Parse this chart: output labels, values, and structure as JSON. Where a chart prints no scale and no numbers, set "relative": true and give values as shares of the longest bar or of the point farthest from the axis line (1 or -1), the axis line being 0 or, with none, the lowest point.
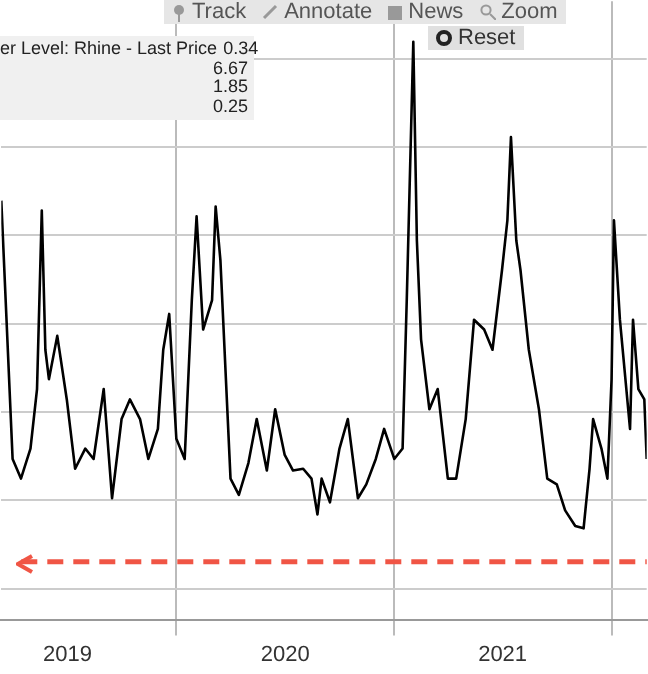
{
  "chart_data": {
    "type": "line",
    "relative": true,
    "grid": true,
    "legend": false,
    "marker": "none",
    "line_style": "solid",
    "annotations": [
      "Track",
      "Annotate",
      "News",
      "Zoom",
      "Reset",
      "er Level: Rhine - Last Price",
      "0.34",
      "6.67",
      "1.85",
      "0.25"
    ],
    "xlim": [
      "2019-03-13",
      "2022-03-01"
    ],
    "ref_lines": [
      {
        "axis": "y",
        "value": 0.1,
        "color": "#f05545",
        "line_style": "dashed"
      }
    ],
    "xticks": [
      {
        "value": "2019-07-02",
        "label": "2019"
      },
      {
        "value": "2020-01-01",
        "label": null
      },
      {
        "value": "2020-07-02",
        "label": "2020"
      },
      {
        "value": "2021-01-01",
        "label": null
      },
      {
        "value": "2021-07-02",
        "label": "2021"
      },
      {
        "value": "2022-01-01",
        "label": null
      }
    ],
    "series": [
      {
        "color": "#000000",
        "x": [
          "2019-03-13",
          "2019-04-01",
          "2019-04-15",
          "2019-05-01",
          "2019-05-12",
          "2019-05-20",
          "2019-05-26",
          "2019-06-01",
          "2019-06-15",
          "2019-07-01",
          "2019-07-15",
          "2019-08-01",
          "2019-08-15",
          "2019-09-01",
          "2019-09-15",
          "2019-10-01",
          "2019-10-15",
          "2019-11-01",
          "2019-11-15",
          "2019-12-01",
          "2019-12-10",
          "2019-12-20",
          "2020-01-01",
          "2020-01-15",
          "2020-01-27",
          "2020-02-04",
          "2020-02-15",
          "2020-03-01",
          "2020-03-07",
          "2020-03-15",
          "2020-04-01",
          "2020-04-15",
          "2020-05-01",
          "2020-05-15",
          "2020-06-01",
          "2020-06-15",
          "2020-07-01",
          "2020-07-15",
          "2020-08-01",
          "2020-08-15",
          "2020-08-25",
          "2020-09-01",
          "2020-09-15",
          "2020-10-01",
          "2020-10-15",
          "2020-11-01",
          "2020-11-15",
          "2020-12-01",
          "2020-12-15",
          "2021-01-01",
          "2021-01-15",
          "2021-01-22",
          "2021-02-02",
          "2021-02-08",
          "2021-02-15",
          "2021-03-01",
          "2021-03-15",
          "2021-04-01",
          "2021-04-15",
          "2021-05-01",
          "2021-05-15",
          "2021-06-01",
          "2021-06-15",
          "2021-07-01",
          "2021-07-10",
          "2021-07-16",
          "2021-07-25",
          "2021-08-01",
          "2021-08-15",
          "2021-09-01",
          "2021-09-15",
          "2021-10-01",
          "2021-10-15",
          "2021-11-01",
          "2021-11-15",
          "2021-11-25",
          "2021-12-01",
          "2021-12-15",
          "2021-12-25",
          "2022-01-01",
          "2022-01-05",
          "2022-01-15",
          "2022-02-01",
          "2022-02-06",
          "2022-02-15",
          "2022-02-25",
          "2022-03-01"
        ],
        "values": [
          0.725,
          0.278,
          0.244,
          0.296,
          0.399,
          0.708,
          0.467,
          0.416,
          0.491,
          0.381,
          0.261,
          0.296,
          0.278,
          0.399,
          0.21,
          0.347,
          0.381,
          0.347,
          0.278,
          0.33,
          0.467,
          0.529,
          0.313,
          0.278,
          0.553,
          0.698,
          0.502,
          0.553,
          0.715,
          0.622,
          0.244,
          0.216,
          0.271,
          0.347,
          0.258,
          0.364,
          0.285,
          0.258,
          0.261,
          0.244,
          0.182,
          0.244,
          0.203,
          0.296,
          0.347,
          0.21,
          0.234,
          0.278,
          0.33,
          0.278,
          0.296,
          0.553,
          1,
          0.656,
          0.485,
          0.364,
          0.399,
          0.244,
          0.244,
          0.347,
          0.519,
          0.502,
          0.467,
          0.605,
          0.691,
          0.835,
          0.656,
          0.605,
          0.467,
          0.364,
          0.244,
          0.234,
          0.189,
          0.162,
          0.158,
          0.261,
          0.347,
          0.296,
          0.244,
          0.416,
          0.691,
          0.519,
          0.33,
          0.519,
          0.399,
          0.381,
          0.278
        ]
      }
    ]
  }
}
